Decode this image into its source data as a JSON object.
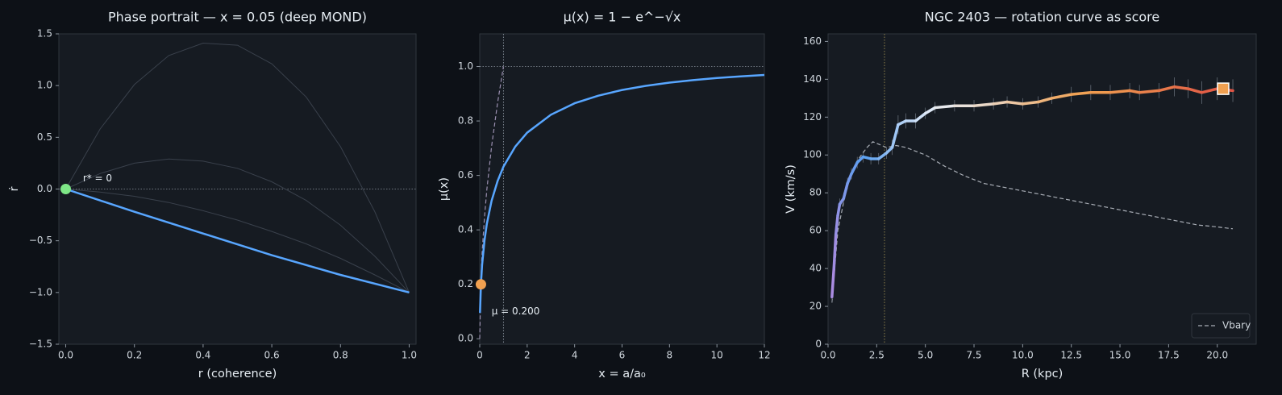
{
  "chart_data": [
    {
      "type": "line",
      "title": "Phase portrait — x = 0.05 (deep MOND)",
      "xlabel": "r (coherence)",
      "ylabel": "ṙ",
      "xlim": [
        -0.02,
        1.02
      ],
      "ylim": [
        -1.5,
        1.5
      ],
      "xticks": [
        {
          "value": 0,
          "label": "0.0"
        },
        {
          "value": 0.2,
          "label": "0.2"
        },
        {
          "value": 0.4,
          "label": "0.4"
        },
        {
          "value": 0.6,
          "label": "0.6"
        },
        {
          "value": 0.8,
          "label": "0.8"
        },
        {
          "value": 1,
          "label": "1.0"
        }
      ],
      "yticks": [
        {
          "value": -1.5,
          "label": "−1.5"
        },
        {
          "value": -1,
          "label": "−1.0"
        },
        {
          "value": -0.5,
          "label": "−0.5"
        },
        {
          "value": 0,
          "label": "0.0"
        },
        {
          "value": 0.5,
          "label": "0.5"
        },
        {
          "value": 1,
          "label": "1.0"
        },
        {
          "value": 1.5,
          "label": "1.5"
        }
      ],
      "hlines": [
        0
      ],
      "series": [
        {
          "color": "#3a414c",
          "width": 1,
          "x": [
            0,
            0.1,
            0.2,
            0.3,
            0.4,
            0.5,
            0.6,
            0.7,
            0.8,
            0.9,
            1
          ],
          "values": [
            0,
            0.58,
            1.01,
            1.29,
            1.41,
            1.39,
            1.21,
            0.89,
            0.41,
            -0.22,
            -1
          ]
        },
        {
          "color": "#3a414c",
          "width": 1,
          "x": [
            0,
            0.1,
            0.2,
            0.3,
            0.4,
            0.5,
            0.6,
            0.7,
            0.8,
            0.9,
            1
          ],
          "values": [
            0,
            0.15,
            0.25,
            0.29,
            0.27,
            0.2,
            0.07,
            -0.11,
            -0.35,
            -0.65,
            -1
          ]
        },
        {
          "color": "#3a414c",
          "width": 1,
          "x": [
            0,
            0.1,
            0.2,
            0.3,
            0.4,
            0.5,
            0.6,
            0.7,
            0.8,
            0.9,
            1
          ],
          "values": [
            0,
            -0.03,
            -0.07,
            -0.13,
            -0.21,
            -0.3,
            -0.41,
            -0.53,
            -0.67,
            -0.83,
            -1
          ]
        },
        {
          "color": "#58a6ff",
          "width": 2.5,
          "x": [
            0,
            0.2,
            0.4,
            0.6,
            0.8,
            1
          ],
          "values": [
            0,
            -0.22,
            -0.43,
            -0.64,
            -0.83,
            -1
          ]
        }
      ],
      "points": [
        {
          "x": 0,
          "y": 0,
          "color": "#7ee787",
          "shape": "circle"
        }
      ],
      "annotations": [
        {
          "text": "r* = 0",
          "x": 0.05,
          "y": 0.1,
          "color": "#7ee787"
        }
      ]
    },
    {
      "type": "line",
      "title": "μ(x) = 1 − e^−√x",
      "xlabel": "x = a/a₀",
      "ylabel": "μ(x)",
      "xlim": [
        0,
        12
      ],
      "ylim": [
        -0.02,
        1.12
      ],
      "xticks": [
        0,
        2,
        4,
        6,
        8,
        10,
        12
      ],
      "yticks": [
        {
          "value": 0,
          "label": "0.0"
        },
        {
          "value": 0.2,
          "label": "0.2"
        },
        {
          "value": 0.4,
          "label": "0.4"
        },
        {
          "value": 0.6,
          "label": "0.6"
        },
        {
          "value": 0.8,
          "label": "0.8"
        },
        {
          "value": 1,
          "label": "1.0"
        }
      ],
      "vlines": [
        1
      ],
      "hlines": [
        1
      ],
      "series": [
        {
          "color": "#9a8fb0",
          "width": 1.2,
          "dash": "dashed",
          "x": [
            0,
            0.05,
            0.1,
            0.2,
            0.3,
            0.5,
            0.75,
            1
          ],
          "values": [
            0,
            0.224,
            0.316,
            0.447,
            0.548,
            0.707,
            0.866,
            1
          ]
        },
        {
          "color": "#58a6ff",
          "width": 2.5,
          "x": [
            0.01,
            0.05,
            0.1,
            0.2,
            0.3,
            0.5,
            0.75,
            1,
            1.5,
            2,
            3,
            4,
            5,
            6,
            7,
            8,
            9,
            10,
            11,
            12
          ],
          "values": [
            0.095,
            0.2,
            0.271,
            0.361,
            0.422,
            0.507,
            0.579,
            0.632,
            0.706,
            0.757,
            0.823,
            0.865,
            0.893,
            0.914,
            0.929,
            0.941,
            0.95,
            0.958,
            0.964,
            0.969
          ]
        }
      ],
      "points": [
        {
          "x": 0.05,
          "y": 0.2,
          "color": "#f0a050",
          "shape": "circle"
        }
      ],
      "annotations": [
        {
          "text": "μ = 0.200",
          "x": 0.5,
          "y": 0.1,
          "color": "#f0a050"
        }
      ]
    },
    {
      "type": "line",
      "title": "NGC 2403 — rotation curve as score",
      "xlabel": "R (kpc)",
      "ylabel": "V (km/s)",
      "xlim": [
        0,
        22
      ],
      "ylim": [
        0,
        164
      ],
      "xticks": [
        {
          "value": 0,
          "label": "0.0"
        },
        {
          "value": 2.5,
          "label": "2.5"
        },
        {
          "value": 5,
          "label": "5.0"
        },
        {
          "value": 7.5,
          "label": "7.5"
        },
        {
          "value": 10,
          "label": "10.0"
        },
        {
          "value": 12.5,
          "label": "12.5"
        },
        {
          "value": 15,
          "label": "15.0"
        },
        {
          "value": 17.5,
          "label": "17.5"
        },
        {
          "value": 20,
          "label": "20.0"
        }
      ],
      "yticks": [
        0,
        20,
        40,
        60,
        80,
        100,
        120,
        140,
        160
      ],
      "vlines": [
        2.9
      ],
      "legend": "lower right",
      "series": [
        {
          "name": "Vbary",
          "color": "#a8adb5",
          "width": 1.2,
          "dash": "dashed",
          "x": [
            0.2,
            0.5,
            1,
            1.5,
            2,
            2.3,
            3,
            3.5,
            4,
            5,
            6,
            7,
            8,
            9,
            10,
            11,
            12,
            13,
            14,
            15,
            16,
            17,
            18,
            19,
            20,
            20.8
          ],
          "values": [
            22,
            60,
            85,
            97,
            104,
            107,
            104,
            105,
            104,
            100,
            94,
            89,
            85,
            83,
            81,
            79,
            77,
            75,
            73,
            71,
            69,
            67,
            65,
            63,
            62,
            61
          ]
        },
        {
          "colors": [
            "#a98be0",
            "#5aa0f0",
            "#e8eef8",
            "#f0a050",
            "#e05545"
          ],
          "width": 3.5,
          "x": [
            0.2,
            0.3,
            0.4,
            0.5,
            0.6,
            0.8,
            1,
            1.2,
            1.5,
            1.8,
            2.2,
            2.6,
            3,
            3.3,
            3.6,
            4,
            4.5,
            5,
            5.5,
            6.5,
            7.5,
            8.5,
            9.2,
            10,
            10.8,
            11.5,
            12.5,
            13.5,
            14.5,
            15.5,
            16,
            17,
            17.8,
            18.5,
            19.2,
            20,
            20.8
          ],
          "values": [
            25,
            40,
            58,
            68,
            74,
            77,
            85,
            90,
            96,
            99,
            98,
            98,
            101,
            104,
            116,
            118,
            118,
            122,
            125,
            126,
            126,
            127,
            128,
            127,
            128,
            130,
            132,
            133,
            133,
            134,
            133,
            134,
            136,
            135,
            133,
            135,
            134
          ],
          "errors": [
            3,
            3,
            3,
            3,
            3,
            3,
            3,
            3,
            3,
            3,
            3,
            3,
            3,
            4,
            5,
            4,
            4,
            3,
            3,
            3,
            3,
            3,
            3,
            3,
            3,
            3,
            4,
            4,
            4,
            4,
            4,
            4,
            5,
            5,
            6,
            6,
            6
          ]
        }
      ],
      "points": [
        {
          "x": 20.3,
          "y": 135,
          "color": "#f0a050",
          "shape": "square"
        }
      ]
    }
  ]
}
